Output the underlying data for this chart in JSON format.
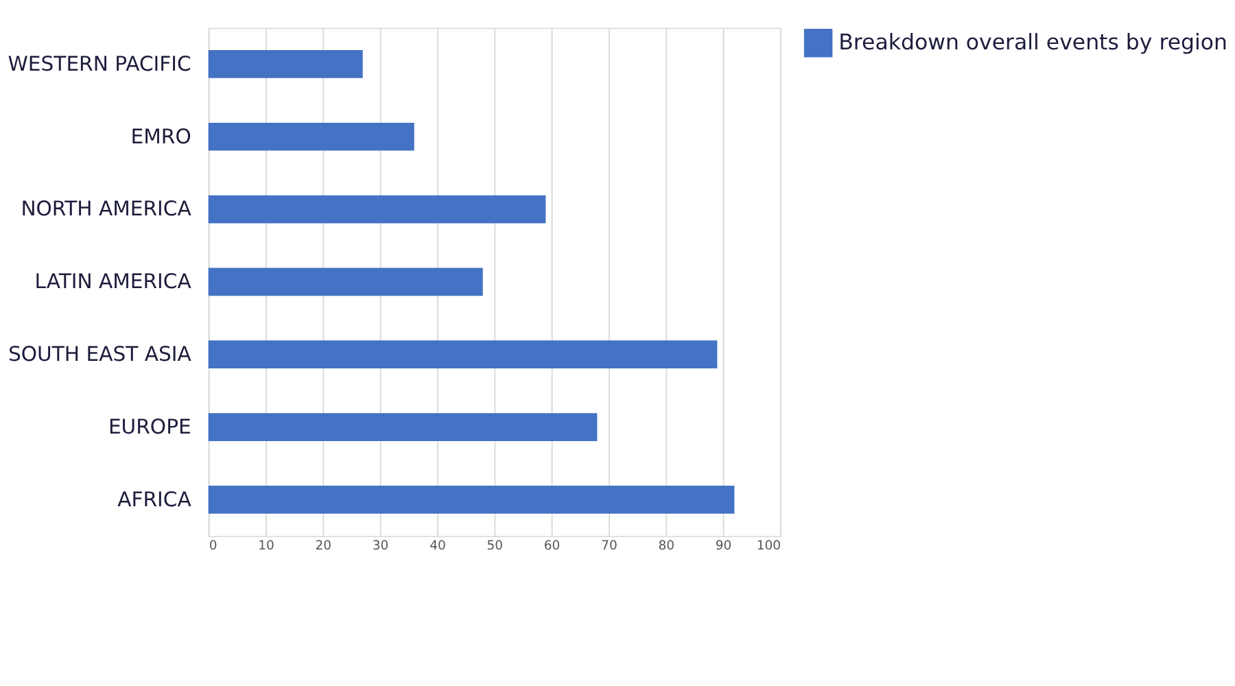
{
  "chart_data": {
    "type": "bar",
    "orientation": "horizontal",
    "categories": [
      "WESTERN PACIFIC",
      "EMRO",
      "NORTH AMERICA",
      "LATIN AMERICA",
      "SOUTH EAST ASIA",
      "EUROPE",
      "AFRICA"
    ],
    "series": [
      {
        "name": "Breakdown overall events by region",
        "color": "#4472c4",
        "values": [
          27,
          36,
          59,
          48,
          89,
          68,
          92
        ]
      }
    ],
    "xlim": [
      0,
      100
    ],
    "xticks": [
      0,
      10,
      20,
      30,
      40,
      50,
      60,
      70,
      80,
      90,
      100
    ],
    "grid": "x",
    "legend": "right"
  }
}
